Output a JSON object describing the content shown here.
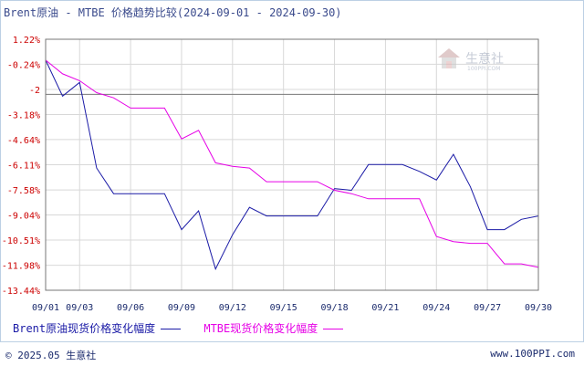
{
  "title": "Brent原油 - MTBE 价格趋势比较(2024-09-01 - 2024-09-30)",
  "watermark": {
    "text": "生意社",
    "subtext": "100PPI.COM"
  },
  "footer": {
    "copyright": "© 2025.05 生意社",
    "site": "www.100PPI.com"
  },
  "colors": {
    "brent": "#1a1aa6",
    "mtbe": "#e600e6",
    "tick_y": "#cc0000",
    "axis": "#1a2a6c",
    "grid": "#d8d8d8",
    "ref_line": "#777777"
  },
  "chart_data": {
    "type": "line",
    "title": "Brent原油 - MTBE 价格趋势比较(2024-09-01 - 2024-09-30)",
    "x": [
      "09/01",
      "09/02",
      "09/03",
      "09/04",
      "09/05",
      "09/06",
      "09/07",
      "09/08",
      "09/09",
      "09/10",
      "09/11",
      "09/12",
      "09/13",
      "09/14",
      "09/15",
      "09/16",
      "09/17",
      "09/18",
      "09/19",
      "09/20",
      "09/21",
      "09/22",
      "09/23",
      "09/24",
      "09/25",
      "09/26",
      "09/27",
      "09/28",
      "09/29",
      "09/30"
    ],
    "x_tick_labels": [
      "09/01",
      "09/03",
      "09/06",
      "09/09",
      "09/12",
      "09/15",
      "09/18",
      "09/21",
      "09/24",
      "09/27",
      "09/30"
    ],
    "y_tick_labels": [
      "1.22%",
      "-0.24%",
      "-2",
      "-3.18%",
      "-4.64%",
      "-6.11%",
      "-7.58%",
      "-9.04%",
      "-10.51%",
      "-11.98%",
      "-13.44%"
    ],
    "y_ticks": [
      1.22,
      -0.24,
      -1.71,
      -3.18,
      -4.64,
      -6.11,
      -7.58,
      -9.04,
      -10.51,
      -11.98,
      -13.44
    ],
    "reference_line": -2.0,
    "ylim": [
      -13.44,
      1.22
    ],
    "grid": true,
    "legend_position": "bottom-left",
    "series": [
      {
        "name": "Brent原油现货价格变化幅度",
        "color": "#1a1aa6",
        "x": [
          "09/01",
          "09/02",
          "09/03",
          "09/04",
          "09/05",
          "09/07",
          "09/08",
          "09/09",
          "09/10",
          "09/11",
          "09/12",
          "09/13",
          "09/14",
          "09/16",
          "09/17",
          "09/18",
          "09/19",
          "09/20",
          "09/22",
          "09/23",
          "09/24",
          "09/25",
          "09/26",
          "09/27",
          "09/28",
          "09/29",
          "09/30"
        ],
        "values": [
          0.0,
          -2.1,
          -1.3,
          -6.3,
          -7.8,
          -7.8,
          -7.8,
          -9.9,
          -8.8,
          -12.2,
          -10.2,
          -8.6,
          -9.1,
          -9.1,
          -9.1,
          -7.5,
          -7.6,
          -6.1,
          -6.1,
          -6.5,
          -7.0,
          -5.5,
          -7.4,
          -9.9,
          -9.9,
          -9.3,
          -9.1
        ]
      },
      {
        "name": "MTBE现货价格变化幅度",
        "color": "#e600e6",
        "x": [
          "09/01",
          "09/02",
          "09/03",
          "09/04",
          "09/05",
          "09/06",
          "09/07",
          "09/08",
          "09/09",
          "09/10",
          "09/11",
          "09/12",
          "09/13",
          "09/14",
          "09/16",
          "09/17",
          "09/18",
          "09/19",
          "09/20",
          "09/22",
          "09/23",
          "09/24",
          "09/25",
          "09/26",
          "09/27",
          "09/28",
          "09/29",
          "09/30"
        ],
        "values": [
          0.0,
          -0.8,
          -1.2,
          -1.9,
          -2.2,
          -2.8,
          -2.8,
          -2.8,
          -4.6,
          -4.1,
          -6.0,
          -6.2,
          -6.3,
          -7.1,
          -7.1,
          -7.1,
          -7.6,
          -7.8,
          -8.1,
          -8.1,
          -8.1,
          -10.3,
          -10.6,
          -10.7,
          -10.7,
          -11.9,
          -11.9,
          -12.1
        ]
      }
    ]
  },
  "legend": {
    "brent_label": "Brent原油现货价格变化幅度",
    "mtbe_label": "MTBE现货价格变化幅度"
  }
}
